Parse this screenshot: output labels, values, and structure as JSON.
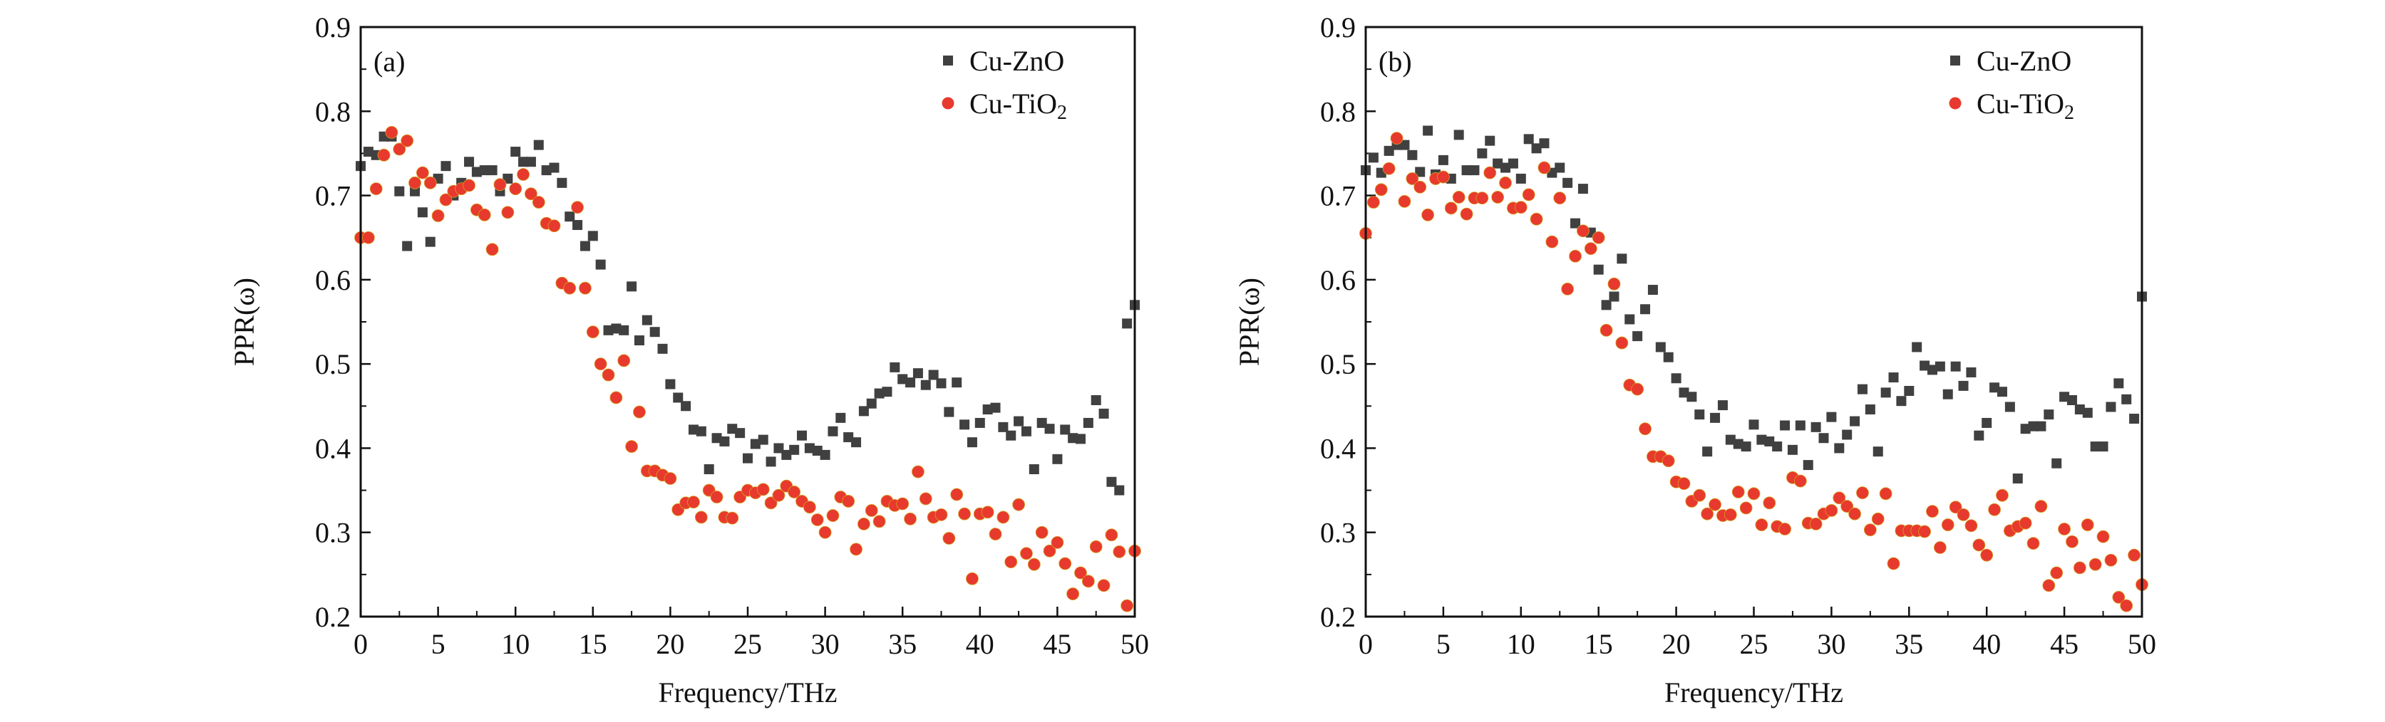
{
  "chart_data": [
    {
      "type": "scatter",
      "panel_label": "(a)",
      "xlabel": "Frequency/THz",
      "ylabel": "PPR(ω)",
      "xlim": [
        0,
        50
      ],
      "ylim": [
        0.2,
        0.9
      ],
      "xticks": [
        "0",
        "5",
        "10",
        "15",
        "20",
        "25",
        "30",
        "35",
        "40",
        "45",
        "50"
      ],
      "yticks": [
        "0.2",
        "0.3",
        "0.4",
        "0.5",
        "0.6",
        "0.7",
        "0.8",
        "0.9"
      ],
      "grid": false,
      "legend_placement": "top-right",
      "x": [
        0,
        0.5,
        1,
        1.5,
        2,
        2.5,
        3,
        3.5,
        4,
        4.5,
        5,
        5.5,
        6,
        6.5,
        7,
        7.5,
        8,
        8.5,
        9,
        9.5,
        10,
        10.5,
        11,
        11.5,
        12,
        12.5,
        13,
        13.5,
        14,
        14.5,
        15,
        15.5,
        16,
        16.5,
        17,
        17.5,
        18,
        18.5,
        19,
        19.5,
        20,
        20.5,
        21,
        21.5,
        22,
        22.5,
        23,
        23.5,
        24,
        24.5,
        25,
        25.5,
        26,
        26.5,
        27,
        27.5,
        28,
        28.5,
        29,
        29.5,
        30,
        30.5,
        31,
        31.5,
        32,
        32.5,
        33,
        33.5,
        34,
        34.5,
        35,
        35.5,
        36,
        36.5,
        37,
        37.5,
        38,
        38.5,
        39,
        39.5,
        40,
        40.5,
        41,
        41.5,
        42,
        42.5,
        43,
        43.5,
        44,
        44.5,
        45,
        45.5,
        46,
        46.5,
        47,
        47.5,
        48,
        48.5,
        49,
        49.5,
        50
      ],
      "series": [
        {
          "name": "Cu-ZnO",
          "marker": "square",
          "color": "#404040",
          "values": [
            0.735,
            0.752,
            0.748,
            0.77,
            0.77,
            0.705,
            0.64,
            0.705,
            0.68,
            0.645,
            0.72,
            0.735,
            0.7,
            0.715,
            0.74,
            0.728,
            0.73,
            0.73,
            0.705,
            0.72,
            0.752,
            0.74,
            0.74,
            0.76,
            0.73,
            0.733,
            0.715,
            0.675,
            0.665,
            0.64,
            0.652,
            0.618,
            0.54,
            0.542,
            0.54,
            0.592,
            0.528,
            0.552,
            0.538,
            0.518,
            0.476,
            0.46,
            0.45,
            0.422,
            0.42,
            0.375,
            0.412,
            0.408,
            0.423,
            0.418,
            0.388,
            0.405,
            0.41,
            0.384,
            0.4,
            0.392,
            0.398,
            0.415,
            0.4,
            0.397,
            0.392,
            0.42,
            0.436,
            0.413,
            0.407,
            0.444,
            0.453,
            0.465,
            0.467,
            0.496,
            0.482,
            0.478,
            0.489,
            0.475,
            0.487,
            0.477,
            0.443,
            0.478,
            0.428,
            0.407,
            0.43,
            0.446,
            0.448,
            0.425,
            0.415,
            0.432,
            0.42,
            0.375,
            0.43,
            0.423,
            0.387,
            0.422,
            0.412,
            0.411,
            0.43,
            0.457,
            0.441,
            0.36,
            0.35,
            0.548,
            0.57
          ]
        },
        {
          "name": "Cu-TiO2",
          "marker": "circle",
          "color": "#e8392e",
          "values": [
            0.65,
            0.65,
            0.708,
            0.748,
            0.775,
            0.755,
            0.765,
            0.715,
            0.727,
            0.715,
            0.676,
            0.695,
            0.705,
            0.708,
            0.712,
            0.683,
            0.677,
            0.636,
            0.713,
            0.68,
            0.708,
            0.725,
            0.702,
            0.692,
            0.667,
            0.664,
            0.596,
            0.59,
            0.686,
            0.59,
            0.538,
            0.5,
            0.487,
            0.46,
            0.504,
            0.402,
            0.443,
            0.373,
            0.373,
            0.368,
            0.364,
            0.327,
            0.335,
            0.336,
            0.318,
            0.35,
            0.342,
            0.318,
            0.317,
            0.342,
            0.35,
            0.347,
            0.351,
            0.335,
            0.344,
            0.355,
            0.348,
            0.337,
            0.33,
            0.315,
            0.3,
            0.32,
            0.342,
            0.337,
            0.28,
            0.31,
            0.326,
            0.313,
            0.337,
            0.332,
            0.334,
            0.316,
            0.372,
            0.34,
            0.318,
            0.321,
            0.293,
            0.345,
            0.322,
            0.245,
            0.322,
            0.324,
            0.298,
            0.318,
            0.265,
            0.333,
            0.275,
            0.262,
            0.3,
            0.278,
            0.288,
            0.263,
            0.227,
            0.252,
            0.242,
            0.283,
            0.237,
            0.297,
            0.277,
            0.213,
            0.278
          ]
        }
      ]
    },
    {
      "type": "scatter",
      "panel_label": "(b)",
      "xlabel": "Frequency/THz",
      "ylabel": "PPR(ω)",
      "xlim": [
        0,
        50
      ],
      "ylim": [
        0.2,
        0.9
      ],
      "xticks": [
        "0",
        "5",
        "10",
        "15",
        "20",
        "25",
        "30",
        "35",
        "40",
        "45",
        "50"
      ],
      "yticks": [
        "0.2",
        "0.3",
        "0.4",
        "0.5",
        "0.6",
        "0.7",
        "0.8",
        "0.9"
      ],
      "grid": false,
      "legend_placement": "top-right",
      "x": [
        0,
        0.5,
        1,
        1.5,
        2,
        2.5,
        3,
        3.5,
        4,
        4.5,
        5,
        5.5,
        6,
        6.5,
        7,
        7.5,
        8,
        8.5,
        9,
        9.5,
        10,
        10.5,
        11,
        11.5,
        12,
        12.5,
        13,
        13.5,
        14,
        14.5,
        15,
        15.5,
        16,
        16.5,
        17,
        17.5,
        18,
        18.5,
        19,
        19.5,
        20,
        20.5,
        21,
        21.5,
        22,
        22.5,
        23,
        23.5,
        24,
        24.5,
        25,
        25.5,
        26,
        26.5,
        27,
        27.5,
        28,
        28.5,
        29,
        29.5,
        30,
        30.5,
        31,
        31.5,
        32,
        32.5,
        33,
        33.5,
        34,
        34.5,
        35,
        35.5,
        36,
        36.5,
        37,
        37.5,
        38,
        38.5,
        39,
        39.5,
        40,
        40.5,
        41,
        41.5,
        42,
        42.5,
        43,
        43.5,
        44,
        44.5,
        45,
        45.5,
        46,
        46.5,
        47,
        47.5,
        48,
        48.5,
        49,
        49.5,
        50
      ],
      "series": [
        {
          "name": "Cu-ZnO",
          "marker": "square",
          "color": "#404040",
          "values": [
            0.73,
            0.745,
            0.727,
            0.753,
            0.76,
            0.76,
            0.748,
            0.728,
            0.777,
            0.725,
            0.742,
            0.72,
            0.772,
            0.73,
            0.73,
            0.75,
            0.765,
            0.738,
            0.733,
            0.738,
            0.72,
            0.767,
            0.756,
            0.762,
            0.727,
            0.733,
            0.715,
            0.667,
            0.708,
            0.656,
            0.612,
            0.57,
            0.58,
            0.625,
            0.553,
            0.533,
            0.565,
            0.588,
            0.52,
            0.508,
            0.483,
            0.466,
            0.461,
            0.44,
            0.396,
            0.436,
            0.451,
            0.41,
            0.405,
            0.402,
            0.428,
            0.41,
            0.408,
            0.402,
            0.427,
            0.398,
            0.427,
            0.38,
            0.425,
            0.412,
            0.437,
            0.4,
            0.416,
            0.432,
            0.47,
            0.446,
            0.396,
            0.466,
            0.484,
            0.456,
            0.468,
            0.52,
            0.498,
            0.493,
            0.497,
            0.464,
            0.497,
            0.474,
            0.49,
            0.415,
            0.43,
            0.472,
            0.467,
            0.449,
            0.364,
            0.423,
            0.426,
            0.426,
            0.44,
            0.382,
            0.461,
            0.457,
            0.446,
            0.442,
            0.402,
            0.402,
            0.449,
            0.477,
            0.458,
            0.435,
            0.58
          ]
        },
        {
          "name": "Cu-TiO2",
          "marker": "circle",
          "color": "#e8392e",
          "values": [
            0.655,
            0.692,
            0.707,
            0.732,
            0.768,
            0.693,
            0.72,
            0.71,
            0.677,
            0.72,
            0.722,
            0.685,
            0.698,
            0.678,
            0.697,
            0.697,
            0.727,
            0.698,
            0.715,
            0.685,
            0.686,
            0.701,
            0.672,
            0.733,
            0.645,
            0.697,
            0.589,
            0.628,
            0.658,
            0.637,
            0.65,
            0.54,
            0.595,
            0.525,
            0.475,
            0.47,
            0.423,
            0.39,
            0.39,
            0.385,
            0.36,
            0.358,
            0.337,
            0.344,
            0.322,
            0.333,
            0.32,
            0.321,
            0.348,
            0.329,
            0.346,
            0.309,
            0.335,
            0.307,
            0.304,
            0.365,
            0.361,
            0.311,
            0.31,
            0.322,
            0.326,
            0.341,
            0.331,
            0.322,
            0.347,
            0.303,
            0.316,
            0.346,
            0.263,
            0.302,
            0.302,
            0.302,
            0.301,
            0.325,
            0.282,
            0.309,
            0.33,
            0.321,
            0.308,
            0.285,
            0.273,
            0.327,
            0.344,
            0.302,
            0.307,
            0.311,
            0.287,
            0.331,
            0.237,
            0.252,
            0.304,
            0.289,
            0.258,
            0.309,
            0.262,
            0.295,
            0.267,
            0.223,
            0.213,
            0.273,
            0.238
          ]
        }
      ]
    }
  ]
}
